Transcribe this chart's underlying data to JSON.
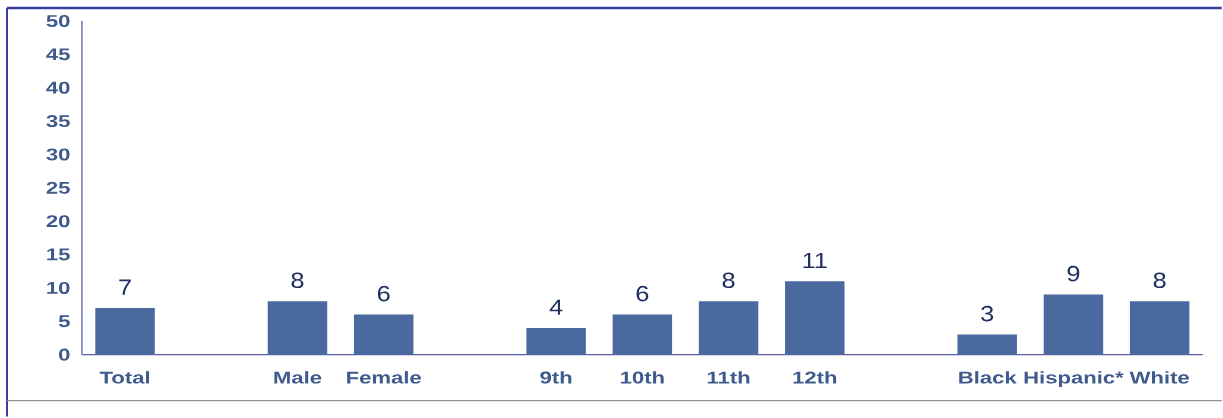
{
  "chart_data": {
    "type": "bar",
    "categories": [
      "Total",
      null,
      "Male",
      "Female",
      null,
      "9th",
      "10th",
      "11th",
      "12th",
      null,
      "Black",
      "Hispanic*",
      "White"
    ],
    "values": [
      7,
      null,
      8,
      6,
      null,
      4,
      6,
      8,
      11,
      null,
      3,
      9,
      8
    ],
    "color": "#4a6a9f",
    "ylim": [
      0,
      50
    ],
    "yticks": [
      0,
      5,
      10,
      15,
      20,
      25,
      30,
      35,
      40,
      45,
      50
    ],
    "data_labels": true
  }
}
